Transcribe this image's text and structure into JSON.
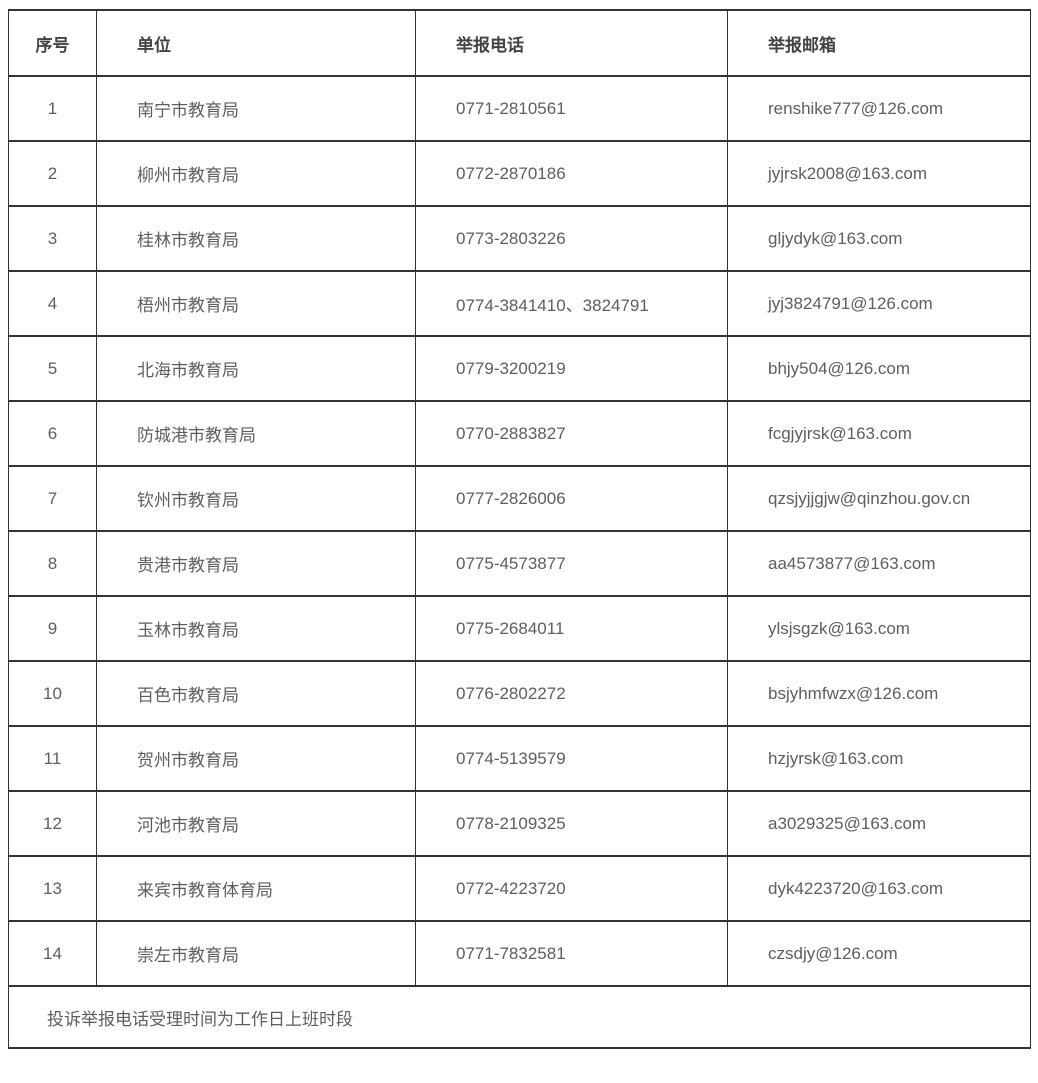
{
  "table": {
    "columns": [
      {
        "key": "no",
        "label": "序号"
      },
      {
        "key": "unit",
        "label": "单位"
      },
      {
        "key": "phone",
        "label": "举报电话"
      },
      {
        "key": "email",
        "label": "举报邮箱"
      }
    ],
    "rows": [
      {
        "no": "1",
        "unit": "南宁市教育局",
        "phone": "0771-2810561",
        "email": "renshike777@126.com"
      },
      {
        "no": "2",
        "unit": "柳州市教育局",
        "phone": "0772-2870186",
        "email": "jyjrsk2008@163.com"
      },
      {
        "no": "3",
        "unit": "桂林市教育局",
        "phone": "0773-2803226",
        "email": "gljydyk@163.com"
      },
      {
        "no": "4",
        "unit": "梧州市教育局",
        "phone": "0774-3841410、3824791",
        "email": "jyj3824791@126.com"
      },
      {
        "no": "5",
        "unit": "北海市教育局",
        "phone": "0779-3200219",
        "email": "bhjy504@126.com"
      },
      {
        "no": "6",
        "unit": "防城港市教育局",
        "phone": "0770-2883827",
        "email": "fcgjyjrsk@163.com"
      },
      {
        "no": "7",
        "unit": "钦州市教育局",
        "phone": "0777-2826006",
        "email": "qzsjyjjgjw@qinzhou.gov.cn"
      },
      {
        "no": "8",
        "unit": "贵港市教育局",
        "phone": "0775-4573877",
        "email": "aa4573877@163.com"
      },
      {
        "no": "9",
        "unit": "玉林市教育局",
        "phone": "0775-2684011",
        "email": "ylsjsgzk@163.com"
      },
      {
        "no": "10",
        "unit": "百色市教育局",
        "phone": "0776-2802272",
        "email": "bsjyhmfwzx@126.com"
      },
      {
        "no": "11",
        "unit": "贺州市教育局",
        "phone": "0774-5139579",
        "email": "hzjyrsk@163.com"
      },
      {
        "no": "12",
        "unit": "河池市教育局",
        "phone": "0778-2109325",
        "email": "a3029325@163.com"
      },
      {
        "no": "13",
        "unit": "来宾市教育体育局",
        "phone": "0772-4223720",
        "email": "dyk4223720@163.com"
      },
      {
        "no": "14",
        "unit": "崇左市教育局",
        "phone": "0771-7832581",
        "email": "czsdjy@126.com"
      }
    ],
    "footer_note": "投诉举报电话受理时间为工作日上班时段"
  },
  "colors": {
    "border": "#333333",
    "body_text": "#5e5e5e",
    "header_text": "#434343",
    "background": "#ffffff"
  }
}
